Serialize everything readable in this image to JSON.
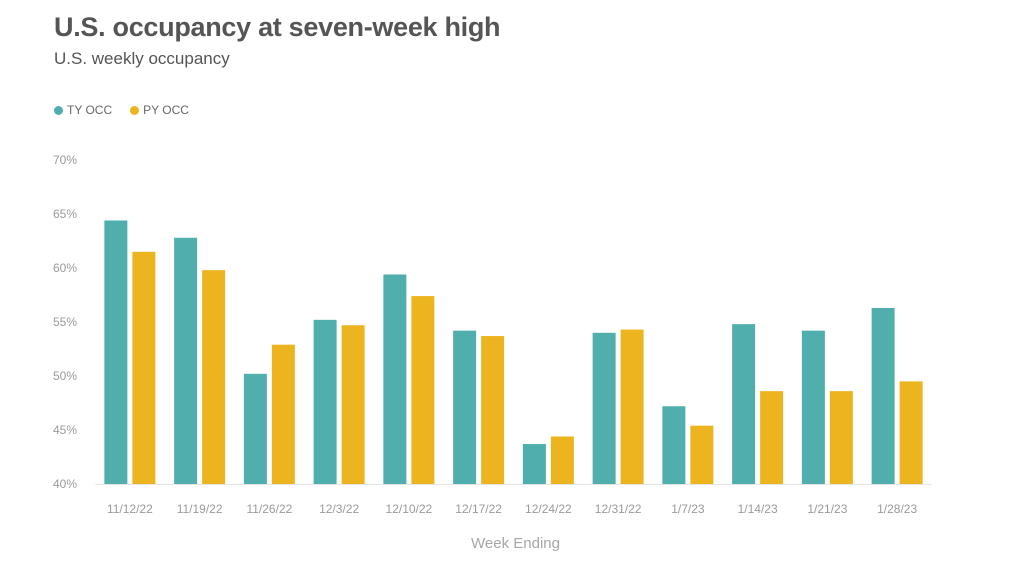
{
  "title": "U.S. occupancy at seven-week high",
  "subtitle": "U.S. weekly occupancy",
  "colors": {
    "ty": "#50AEAC",
    "py": "#ECB520"
  },
  "chart_data": {
    "type": "bar",
    "categories": [
      "11/12/22",
      "11/19/22",
      "11/26/22",
      "12/3/22",
      "12/10/22",
      "12/17/22",
      "12/24/22",
      "12/31/22",
      "1/7/23",
      "1/14/23",
      "1/21/23",
      "1/28/23"
    ],
    "series": [
      {
        "name": "TY OCC",
        "values": [
          64.4,
          62.8,
          50.2,
          55.2,
          59.4,
          54.2,
          43.7,
          54.0,
          47.2,
          54.8,
          54.2,
          56.3
        ]
      },
      {
        "name": "PY OCC",
        "values": [
          61.5,
          59.8,
          52.9,
          54.7,
          57.4,
          53.7,
          44.4,
          54.3,
          45.4,
          48.6,
          48.6,
          49.5
        ]
      }
    ],
    "yticks": [
      "40%",
      "45%",
      "50%",
      "55%",
      "60%",
      "65%",
      "70%"
    ],
    "ylim": [
      40,
      70
    ],
    "xlabel": "Week Ending",
    "ylabel": "",
    "legend_position": "top-left",
    "grid": false
  }
}
